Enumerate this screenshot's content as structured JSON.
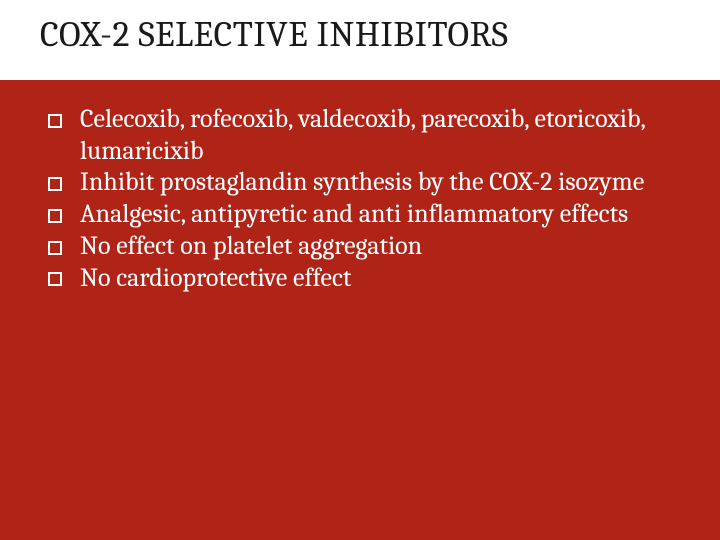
{
  "slide": {
    "background_color": "#ffffff",
    "title": {
      "text": "COX-2 SELECTIVE INHIBITORS",
      "color": "#1a1a1a",
      "fontsize": 36,
      "font_family": "Cambria, Georgia, serif",
      "font_weight": "400"
    },
    "panel": {
      "background_color": "#b02418",
      "text_color": "#ffffff",
      "bullet_border_color": "#ffffff",
      "bullet_fill_color": "transparent",
      "body_fontsize": 26,
      "body_font_family": "Cambria, Georgia, serif",
      "items": [
        "Celecoxib, rofecoxib, valdecoxib, parecoxib, etoricoxib, lumaricixib",
        "Inhibit prostaglandin synthesis by the COX-2 isozyme",
        "Analgesic, antipyretic and anti inflammatory effects",
        "No effect on platelet aggregation",
        "No cardioprotective effect"
      ]
    }
  }
}
